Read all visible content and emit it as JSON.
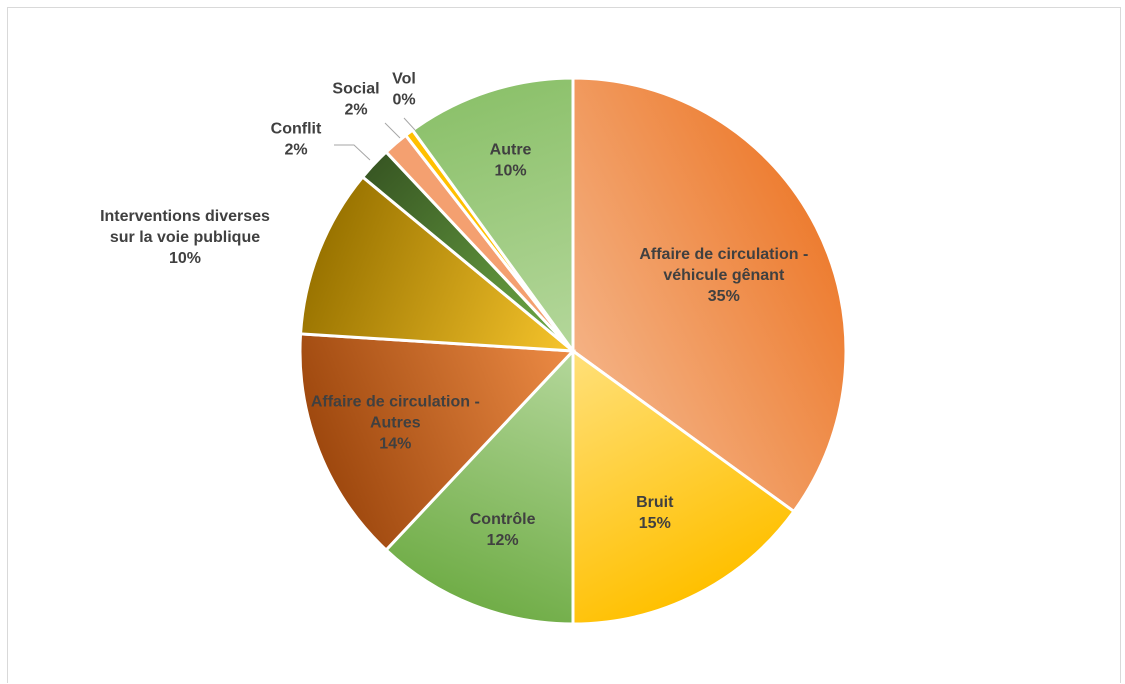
{
  "chart_data": {
    "type": "pie",
    "title": "",
    "slices": [
      {
        "label": "Affaire de circulation - véhicule gênant",
        "label_lines": [
          "Affaire de circulation -",
          "véhicule gênant"
        ],
        "value": 35,
        "value_label": "35%",
        "color_outer": "#ED7D31",
        "color_inner": "#F4B183"
      },
      {
        "label": "Bruit",
        "label_lines": [
          "Bruit"
        ],
        "value": 15,
        "value_label": "15%",
        "color_outer": "#FFC000",
        "color_inner": "#FFE07A"
      },
      {
        "label": "Contrôle",
        "label_lines": [
          "Contrôle"
        ],
        "value": 12,
        "value_label": "12%",
        "color_outer": "#70AD47",
        "color_inner": "#B4D79B"
      },
      {
        "label": "Affaire de circulation - Autres",
        "label_lines": [
          "Affaire de circulation -",
          "Autres"
        ],
        "value": 14,
        "value_label": "14%",
        "color_outer": "#9E480E",
        "color_inner": "#ED8B45"
      },
      {
        "label": "Interventions diverses sur la voie publique",
        "label_lines": [
          "Interventions diverses",
          "sur la voie publique"
        ],
        "value": 10,
        "value_label": "10%",
        "color_outer": "#997300",
        "color_inner": "#F7C52C"
      },
      {
        "label": "Conflit",
        "label_lines": [
          "Conflit"
        ],
        "value": 2,
        "value_label": "2%",
        "color_outer": "#385723",
        "color_inner": "#70AD47"
      },
      {
        "label": "Social",
        "label_lines": [
          "Social"
        ],
        "value": 1.5,
        "value_label": "2%",
        "color_outer": "#F4A070",
        "color_inner": "#F4A070"
      },
      {
        "label": "Vol",
        "label_lines": [
          "Vol"
        ],
        "value": 0.5,
        "value_label": "0%",
        "color_outer": "#FFC000",
        "color_inner": "#FFC000"
      },
      {
        "label": "Autre",
        "label_lines": [
          "Autre"
        ],
        "value": 10,
        "value_label": "10%",
        "color_outer": "#8CC16B",
        "color_inner": "#B4D79B"
      }
    ],
    "legend": "none",
    "data_labels": "category and percentage"
  }
}
